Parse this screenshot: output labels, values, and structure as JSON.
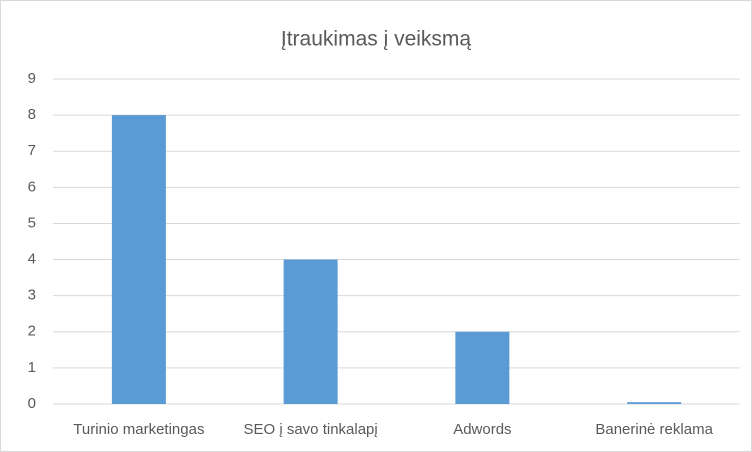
{
  "chart_data": {
    "type": "bar",
    "title": "Įtraukimas į veiksmą",
    "categories": [
      "Turinio marketingas",
      "SEO į savo tinkalapį",
      "Adwords",
      "Banerinė reklama"
    ],
    "values": [
      8,
      4,
      2,
      0.05
    ],
    "color": "#5b9bd5",
    "ylim": [
      0,
      9
    ],
    "yticks": [
      0,
      1,
      2,
      3,
      4,
      5,
      6,
      7,
      8,
      9
    ],
    "grid": true
  }
}
